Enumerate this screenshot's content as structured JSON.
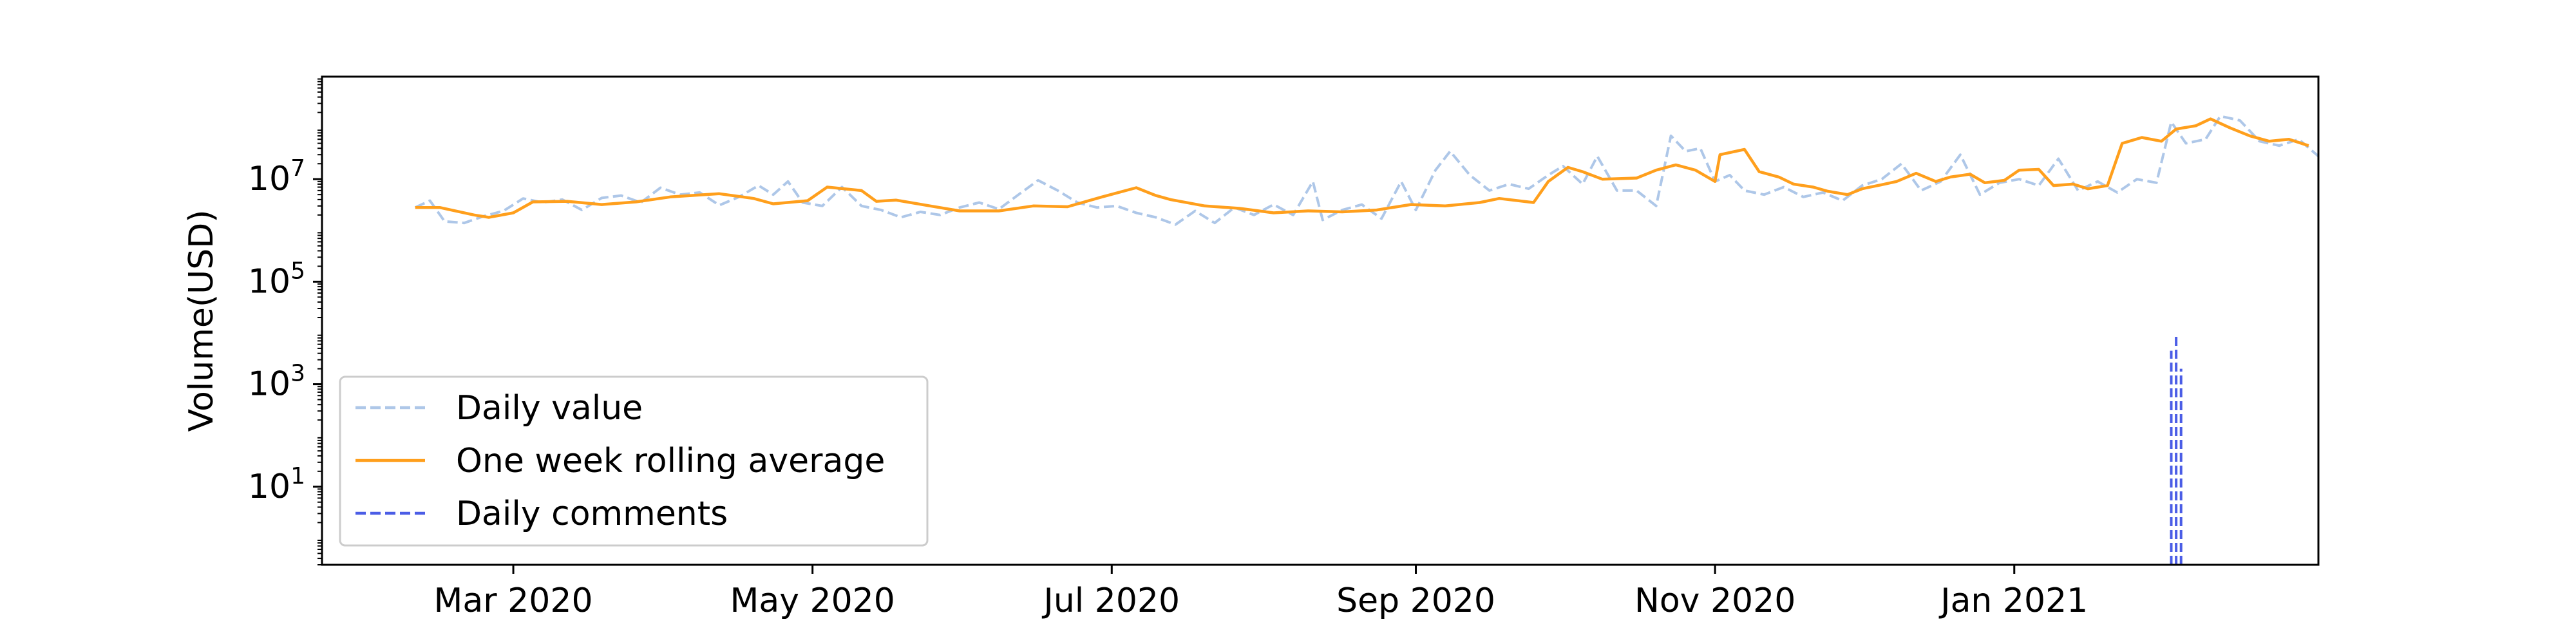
{
  "chart_data": {
    "type": "line",
    "title": "",
    "xlabel": "",
    "ylabel": "Volume(USD)",
    "yscale": "log",
    "ylim": [
      0.3,
      1000000000
    ],
    "xlim": [
      "2020-01-22",
      "2021-03-04"
    ],
    "grid": false,
    "legend_position": "lower-left",
    "x_ticks": [
      {
        "date": "2020-03-01",
        "label": "Mar 2020"
      },
      {
        "date": "2020-05-01",
        "label": "May 2020"
      },
      {
        "date": "2020-07-01",
        "label": "Jul 2020"
      },
      {
        "date": "2020-09-01",
        "label": "Sep 2020"
      },
      {
        "date": "2020-11-01",
        "label": "Nov 2020"
      },
      {
        "date": "2021-01-01",
        "label": "Jan 2021"
      }
    ],
    "y_ticks": [
      {
        "value": 10,
        "base": "10",
        "exp": "1"
      },
      {
        "value": 1000,
        "base": "10",
        "exp": "3"
      },
      {
        "value": 100000,
        "base": "10",
        "exp": "5"
      },
      {
        "value": 10000000,
        "base": "10",
        "exp": "7"
      }
    ],
    "series": [
      {
        "name": "Daily value",
        "color": "#aec7e8",
        "style": "dashed",
        "kind": "line",
        "points": [
          [
            "2020-02-10",
            2800000
          ],
          [
            "2020-02-13",
            3800000
          ],
          [
            "2020-02-16",
            1500000
          ],
          [
            "2020-02-20",
            1400000
          ],
          [
            "2020-02-24",
            1900000
          ],
          [
            "2020-02-28",
            2400000
          ],
          [
            "2020-03-03",
            4200000
          ],
          [
            "2020-03-07",
            3500000
          ],
          [
            "2020-03-11",
            4000000
          ],
          [
            "2020-03-15",
            2500000
          ],
          [
            "2020-03-19",
            4300000
          ],
          [
            "2020-03-23",
            4800000
          ],
          [
            "2020-03-27",
            3500000
          ],
          [
            "2020-03-31",
            6800000
          ],
          [
            "2020-04-04",
            5000000
          ],
          [
            "2020-04-08",
            5500000
          ],
          [
            "2020-04-12",
            3100000
          ],
          [
            "2020-04-16",
            4500000
          ],
          [
            "2020-04-20",
            7500000
          ],
          [
            "2020-04-23",
            5000000
          ],
          [
            "2020-04-26",
            9000000
          ],
          [
            "2020-04-29",
            3500000
          ],
          [
            "2020-05-03",
            3000000
          ],
          [
            "2020-05-07",
            7000000
          ],
          [
            "2020-05-11",
            3000000
          ],
          [
            "2020-05-15",
            2500000
          ],
          [
            "2020-05-19",
            1800000
          ],
          [
            "2020-05-23",
            2300000
          ],
          [
            "2020-05-27",
            2000000
          ],
          [
            "2020-05-31",
            2800000
          ],
          [
            "2020-06-04",
            3500000
          ],
          [
            "2020-06-08",
            2600000
          ],
          [
            "2020-06-12",
            5000000
          ],
          [
            "2020-06-16",
            9500000
          ],
          [
            "2020-06-20",
            6000000
          ],
          [
            "2020-06-24",
            3500000
          ],
          [
            "2020-06-28",
            2800000
          ],
          [
            "2020-07-02",
            3000000
          ],
          [
            "2020-07-06",
            2200000
          ],
          [
            "2020-07-10",
            1800000
          ],
          [
            "2020-07-14",
            1300000
          ],
          [
            "2020-07-18",
            2400000
          ],
          [
            "2020-07-22",
            1400000
          ],
          [
            "2020-07-26",
            2800000
          ],
          [
            "2020-07-30",
            2000000
          ],
          [
            "2020-08-03",
            3200000
          ],
          [
            "2020-08-07",
            2000000
          ],
          [
            "2020-08-11",
            9000000
          ],
          [
            "2020-08-13",
            1600000
          ],
          [
            "2020-08-17",
            2500000
          ],
          [
            "2020-08-21",
            3200000
          ],
          [
            "2020-08-25",
            1700000
          ],
          [
            "2020-08-29",
            9000000
          ],
          [
            "2020-09-01",
            2500000
          ],
          [
            "2020-09-05",
            15000000
          ],
          [
            "2020-09-08",
            35000000
          ],
          [
            "2020-09-12",
            12000000
          ],
          [
            "2020-09-16",
            6000000
          ],
          [
            "2020-09-20",
            8000000
          ],
          [
            "2020-09-24",
            6500000
          ],
          [
            "2020-09-28",
            12000000
          ],
          [
            "2020-10-01",
            18000000
          ],
          [
            "2020-10-05",
            8000000
          ],
          [
            "2020-10-08",
            28000000
          ],
          [
            "2020-10-12",
            6000000
          ],
          [
            "2020-10-16",
            6000000
          ],
          [
            "2020-10-20",
            3000000
          ],
          [
            "2020-10-23",
            70000000
          ],
          [
            "2020-10-26",
            35000000
          ],
          [
            "2020-10-29",
            40000000
          ],
          [
            "2020-11-01",
            9000000
          ],
          [
            "2020-11-04",
            12000000
          ],
          [
            "2020-11-07",
            6000000
          ],
          [
            "2020-11-11",
            5000000
          ],
          [
            "2020-11-15",
            7000000
          ],
          [
            "2020-11-19",
            4500000
          ],
          [
            "2020-11-23",
            5500000
          ],
          [
            "2020-11-27",
            3800000
          ],
          [
            "2020-12-01",
            7500000
          ],
          [
            "2020-12-05",
            10000000
          ],
          [
            "2020-12-09",
            20000000
          ],
          [
            "2020-12-13",
            6000000
          ],
          [
            "2020-12-17",
            9000000
          ],
          [
            "2020-12-21",
            30000000
          ],
          [
            "2020-12-25",
            5000000
          ],
          [
            "2020-12-29",
            8500000
          ],
          [
            "2021-01-02",
            10000000
          ],
          [
            "2021-01-06",
            7500000
          ],
          [
            "2021-01-10",
            25000000
          ],
          [
            "2021-01-14",
            6000000
          ],
          [
            "2021-01-18",
            9000000
          ],
          [
            "2021-01-22",
            5500000
          ],
          [
            "2021-01-26",
            10000000
          ],
          [
            "2021-01-30",
            8500000
          ],
          [
            "2021-02-02",
            130000000
          ],
          [
            "2021-02-05",
            50000000
          ],
          [
            "2021-02-09",
            60000000
          ],
          [
            "2021-02-12",
            170000000
          ],
          [
            "2021-02-16",
            140000000
          ],
          [
            "2021-02-20",
            55000000
          ],
          [
            "2021-02-24",
            45000000
          ],
          [
            "2021-02-28",
            60000000
          ],
          [
            "2021-03-04",
            28000000
          ]
        ]
      },
      {
        "name": "One week rolling average",
        "color": "#ff9f1c",
        "style": "solid",
        "kind": "line",
        "points": [
          [
            "2020-02-10",
            2800000
          ],
          [
            "2020-02-15",
            2800000
          ],
          [
            "2020-02-22",
            2000000
          ],
          [
            "2020-02-25",
            1800000
          ],
          [
            "2020-03-01",
            2200000
          ],
          [
            "2020-03-05",
            3600000
          ],
          [
            "2020-03-12",
            3700000
          ],
          [
            "2020-03-19",
            3200000
          ],
          [
            "2020-03-26",
            3600000
          ],
          [
            "2020-04-02",
            4500000
          ],
          [
            "2020-04-09",
            5000000
          ],
          [
            "2020-04-12",
            5200000
          ],
          [
            "2020-04-19",
            4200000
          ],
          [
            "2020-04-23",
            3300000
          ],
          [
            "2020-04-30",
            3800000
          ],
          [
            "2020-05-04",
            7000000
          ],
          [
            "2020-05-11",
            6000000
          ],
          [
            "2020-05-14",
            3700000
          ],
          [
            "2020-05-18",
            3900000
          ],
          [
            "2020-05-25",
            3000000
          ],
          [
            "2020-05-31",
            2400000
          ],
          [
            "2020-06-08",
            2400000
          ],
          [
            "2020-06-15",
            3000000
          ],
          [
            "2020-06-22",
            2900000
          ],
          [
            "2020-06-29",
            4500000
          ],
          [
            "2020-07-06",
            6800000
          ],
          [
            "2020-07-10",
            4800000
          ],
          [
            "2020-07-13",
            4000000
          ],
          [
            "2020-07-20",
            3000000
          ],
          [
            "2020-07-27",
            2700000
          ],
          [
            "2020-08-03",
            2200000
          ],
          [
            "2020-08-10",
            2400000
          ],
          [
            "2020-08-17",
            2300000
          ],
          [
            "2020-08-24",
            2500000
          ],
          [
            "2020-08-31",
            3200000
          ],
          [
            "2020-09-07",
            3000000
          ],
          [
            "2020-09-14",
            3500000
          ],
          [
            "2020-09-18",
            4200000
          ],
          [
            "2020-09-25",
            3500000
          ],
          [
            "2020-09-28",
            9000000
          ],
          [
            "2020-10-02",
            17000000
          ],
          [
            "2020-10-05",
            14000000
          ],
          [
            "2020-10-09",
            10000000
          ],
          [
            "2020-10-16",
            10500000
          ],
          [
            "2020-10-20",
            15000000
          ],
          [
            "2020-10-24",
            19000000
          ],
          [
            "2020-10-28",
            15000000
          ],
          [
            "2020-11-01",
            9000000
          ],
          [
            "2020-11-02",
            30000000
          ],
          [
            "2020-11-07",
            38000000
          ],
          [
            "2020-11-10",
            14000000
          ],
          [
            "2020-11-14",
            11000000
          ],
          [
            "2020-11-17",
            8000000
          ],
          [
            "2020-11-21",
            7000000
          ],
          [
            "2020-11-24",
            5800000
          ],
          [
            "2020-11-28",
            5000000
          ],
          [
            "2020-12-01",
            6500000
          ],
          [
            "2020-12-05",
            7800000
          ],
          [
            "2020-12-08",
            9000000
          ],
          [
            "2020-12-12",
            13000000
          ],
          [
            "2020-12-16",
            9000000
          ],
          [
            "2020-12-19",
            11000000
          ],
          [
            "2020-12-23",
            12500000
          ],
          [
            "2020-12-26",
            8500000
          ],
          [
            "2020-12-30",
            9500000
          ],
          [
            "2021-01-02",
            15000000
          ],
          [
            "2021-01-06",
            15500000
          ],
          [
            "2021-01-09",
            7500000
          ],
          [
            "2021-01-13",
            8000000
          ],
          [
            "2021-01-16",
            6500000
          ],
          [
            "2021-01-20",
            7500000
          ],
          [
            "2021-01-23",
            50000000
          ],
          [
            "2021-01-27",
            65000000
          ],
          [
            "2021-01-31",
            55000000
          ],
          [
            "2021-02-03",
            95000000
          ],
          [
            "2021-02-07",
            110000000
          ],
          [
            "2021-02-10",
            150000000
          ],
          [
            "2021-02-14",
            100000000
          ],
          [
            "2021-02-18",
            70000000
          ],
          [
            "2021-02-22",
            55000000
          ],
          [
            "2021-02-26",
            60000000
          ],
          [
            "2021-03-02",
            45000000
          ]
        ]
      },
      {
        "name": "Daily comments",
        "color": "#4b5de6",
        "style": "dashed",
        "kind": "spikes",
        "points": [
          [
            "2021-02-02",
            4500
          ],
          [
            "2021-02-03",
            8500
          ],
          [
            "2021-02-04",
            2000
          ]
        ]
      }
    ]
  }
}
